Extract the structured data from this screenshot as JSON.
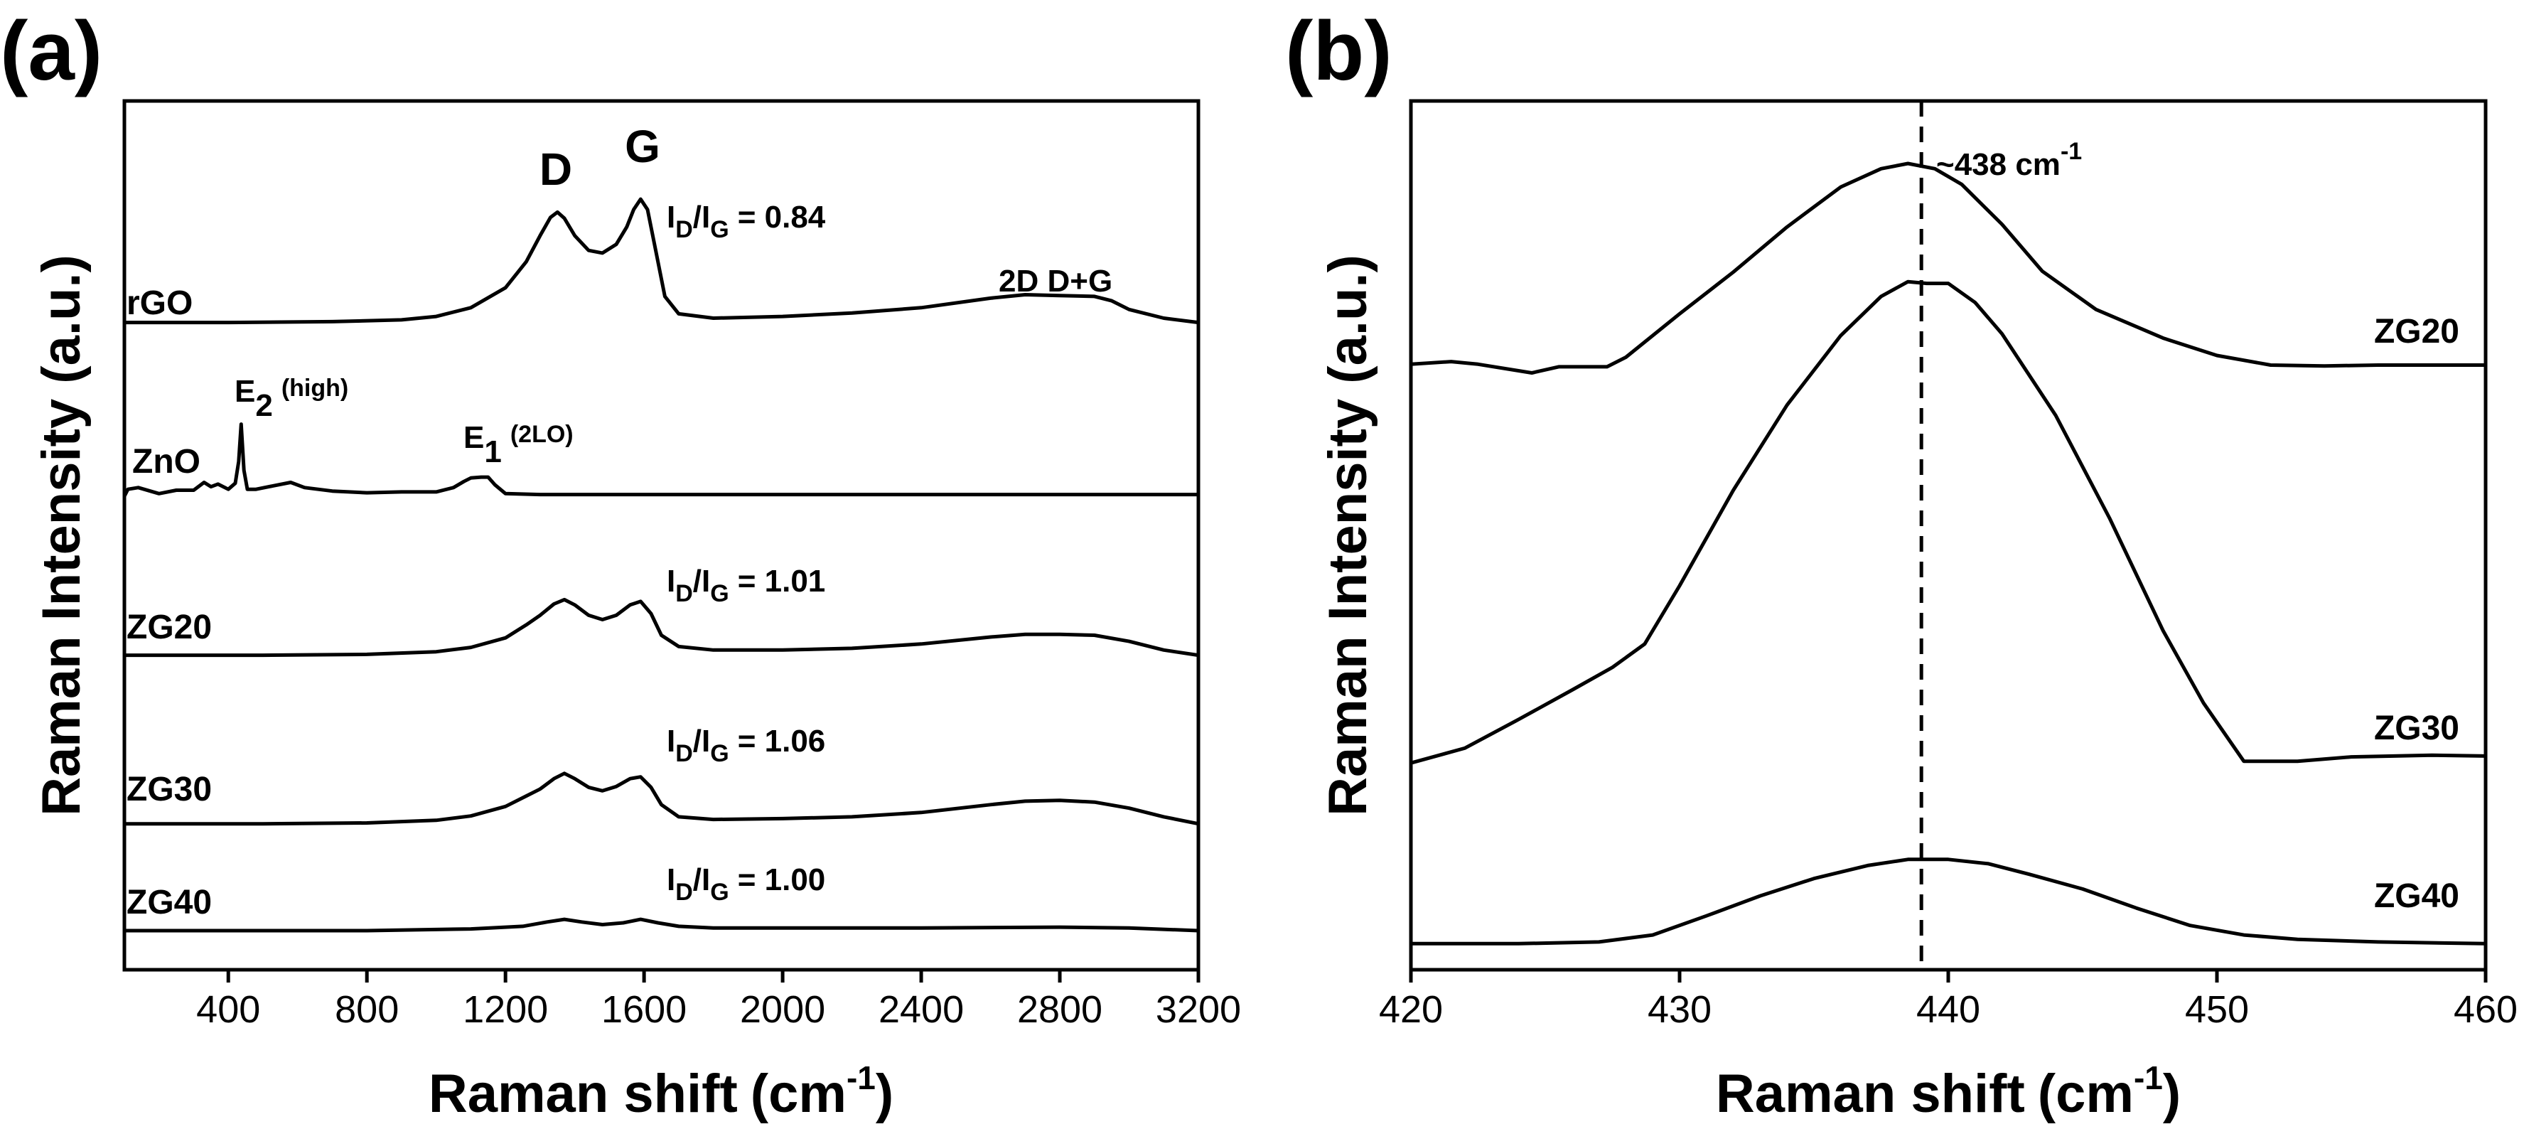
{
  "chart_data": [
    {
      "panel_label": "(a)",
      "type": "line",
      "title": "",
      "xlabel": "Raman shift",
      "xlabel_unit_base": "cm",
      "xlabel_unit_sup": "-1",
      "ylabel": "Raman Intensity (a.u.)",
      "xlim": [
        100,
        3200
      ],
      "xticks": [
        400,
        800,
        1200,
        1600,
        2000,
        2400,
        2800,
        3200
      ],
      "ylim": [
        0,
        1
      ],
      "yticks_shown": false,
      "series": [
        {
          "name": "rGO",
          "x": [
            100,
            400,
            700,
            900,
            1000,
            1100,
            1200,
            1260,
            1300,
            1330,
            1350,
            1370,
            1400,
            1440,
            1480,
            1520,
            1550,
            1570,
            1590,
            1610,
            1630,
            1660,
            1700,
            1800,
            2000,
            2200,
            2400,
            2600,
            2700,
            2800,
            2900,
            2950,
            3000,
            3100,
            3200
          ],
          "y": [
            0.745,
            0.745,
            0.746,
            0.748,
            0.752,
            0.762,
            0.785,
            0.815,
            0.845,
            0.866,
            0.872,
            0.865,
            0.845,
            0.828,
            0.825,
            0.835,
            0.855,
            0.875,
            0.887,
            0.875,
            0.835,
            0.775,
            0.755,
            0.75,
            0.752,
            0.756,
            0.762,
            0.773,
            0.777,
            0.776,
            0.775,
            0.77,
            0.76,
            0.75,
            0.745
          ]
        },
        {
          "name": "ZnO",
          "x": [
            100,
            110,
            140,
            200,
            250,
            300,
            330,
            350,
            370,
            400,
            420,
            430,
            437,
            445,
            455,
            480,
            530,
            580,
            620,
            700,
            800,
            900,
            1000,
            1050,
            1080,
            1100,
            1130,
            1150,
            1170,
            1200,
            1300,
            1600,
            2000,
            2500,
            3200
          ],
          "y": [
            0.545,
            0.553,
            0.555,
            0.548,
            0.552,
            0.552,
            0.561,
            0.556,
            0.559,
            0.553,
            0.56,
            0.585,
            0.628,
            0.575,
            0.553,
            0.553,
            0.557,
            0.561,
            0.555,
            0.551,
            0.549,
            0.55,
            0.55,
            0.555,
            0.562,
            0.566,
            0.567,
            0.567,
            0.558,
            0.548,
            0.547,
            0.547,
            0.547,
            0.547,
            0.547
          ]
        },
        {
          "name": "ZG20",
          "x": [
            100,
            500,
            800,
            1000,
            1100,
            1200,
            1260,
            1300,
            1340,
            1370,
            1400,
            1440,
            1480,
            1520,
            1560,
            1590,
            1620,
            1650,
            1700,
            1800,
            2000,
            2200,
            2400,
            2600,
            2700,
            2800,
            2900,
            3000,
            3100,
            3200
          ],
          "y": [
            0.362,
            0.362,
            0.363,
            0.366,
            0.371,
            0.382,
            0.397,
            0.408,
            0.421,
            0.426,
            0.42,
            0.408,
            0.403,
            0.408,
            0.42,
            0.424,
            0.41,
            0.385,
            0.372,
            0.368,
            0.368,
            0.37,
            0.375,
            0.383,
            0.386,
            0.386,
            0.385,
            0.378,
            0.368,
            0.362
          ]
        },
        {
          "name": "ZG30",
          "x": [
            100,
            500,
            800,
            1000,
            1100,
            1200,
            1260,
            1300,
            1340,
            1370,
            1400,
            1440,
            1480,
            1520,
            1560,
            1590,
            1620,
            1650,
            1700,
            1800,
            2000,
            2200,
            2400,
            2600,
            2700,
            2800,
            2900,
            3000,
            3100,
            3200
          ],
          "y": [
            0.168,
            0.168,
            0.169,
            0.172,
            0.177,
            0.188,
            0.2,
            0.208,
            0.22,
            0.226,
            0.22,
            0.21,
            0.206,
            0.211,
            0.22,
            0.222,
            0.21,
            0.19,
            0.176,
            0.173,
            0.174,
            0.176,
            0.181,
            0.19,
            0.194,
            0.195,
            0.193,
            0.186,
            0.176,
            0.168
          ]
        },
        {
          "name": "ZG40",
          "x": [
            100,
            800,
            1100,
            1250,
            1320,
            1370,
            1420,
            1480,
            1540,
            1590,
            1640,
            1700,
            1800,
            2000,
            2400,
            2800,
            3000,
            3200
          ],
          "y": [
            0.045,
            0.045,
            0.047,
            0.05,
            0.055,
            0.058,
            0.055,
            0.052,
            0.054,
            0.058,
            0.054,
            0.05,
            0.048,
            0.048,
            0.048,
            0.049,
            0.048,
            0.045
          ]
        }
      ],
      "series_labels": [
        "rGO",
        "ZnO",
        "ZG20",
        "ZG30",
        "ZG40"
      ],
      "annotations": {
        "peak_D": "D",
        "peak_G": "G",
        "peak_2D_DG": "2D D+G",
        "e2_main": "E",
        "e2_sub": "2",
        "e2_note": "(high)",
        "e1_main": "E",
        "e1_sub": "1",
        "e1_note": "(2LO)",
        "ratio_I": "I",
        "ratio_D": "D",
        "ratio_slash": "/I",
        "ratio_G": "G",
        "ratio_rgo": "= 0.84",
        "ratio_zg20": "= 1.01",
        "ratio_zg30": "= 1.06",
        "ratio_zg40": "= 1.00"
      }
    },
    {
      "panel_label": "(b)",
      "type": "line",
      "title": "",
      "xlabel": "Raman shift",
      "xlabel_unit_base": "cm",
      "xlabel_unit_sup": "-1",
      "ylabel": "Raman Intensity (a.u.)",
      "xlim": [
        420,
        460
      ],
      "xticks": [
        420,
        430,
        440,
        450,
        460
      ],
      "ylim": [
        0,
        1
      ],
      "yticks_shown": false,
      "reference_line_x": 439,
      "reference_label_main": "~438 cm",
      "reference_label_sup": "-1",
      "series": [
        {
          "name": "ZG20",
          "x": [
            420,
            421.5,
            422.5,
            424.5,
            425.5,
            427.3,
            428,
            430,
            432,
            434,
            436,
            437.5,
            438.5,
            439.5,
            440.5,
            442,
            443.5,
            445.5,
            448,
            450,
            452,
            454,
            456,
            458,
            460
          ],
          "y": [
            0.697,
            0.7,
            0.697,
            0.687,
            0.694,
            0.694,
            0.705,
            0.755,
            0.803,
            0.855,
            0.901,
            0.922,
            0.928,
            0.922,
            0.904,
            0.858,
            0.804,
            0.76,
            0.727,
            0.707,
            0.696,
            0.695,
            0.696,
            0.696,
            0.696
          ]
        },
        {
          "name": "ZG30",
          "x": [
            420,
            422,
            424,
            426,
            427.5,
            428.7,
            430,
            432,
            434,
            436,
            437.5,
            438.5,
            439.2,
            440,
            441,
            442,
            444,
            446,
            448,
            449.5,
            451,
            453,
            455,
            458,
            460
          ],
          "y": [
            0.238,
            0.255,
            0.288,
            0.322,
            0.348,
            0.375,
            0.442,
            0.552,
            0.65,
            0.73,
            0.775,
            0.792,
            0.79,
            0.79,
            0.768,
            0.732,
            0.638,
            0.52,
            0.39,
            0.307,
            0.24,
            0.24,
            0.245,
            0.247,
            0.246
          ]
        },
        {
          "name": "ZG40",
          "x": [
            420,
            424,
            427,
            429,
            431,
            433,
            435,
            437,
            438.5,
            440,
            441.5,
            443,
            445,
            447,
            449,
            451,
            453,
            456,
            460
          ],
          "y": [
            0.03,
            0.03,
            0.032,
            0.04,
            0.062,
            0.085,
            0.105,
            0.12,
            0.127,
            0.127,
            0.122,
            0.11,
            0.093,
            0.071,
            0.051,
            0.04,
            0.035,
            0.032,
            0.03
          ]
        }
      ],
      "series_labels": [
        "ZG20",
        "ZG30",
        "ZG40"
      ]
    }
  ]
}
